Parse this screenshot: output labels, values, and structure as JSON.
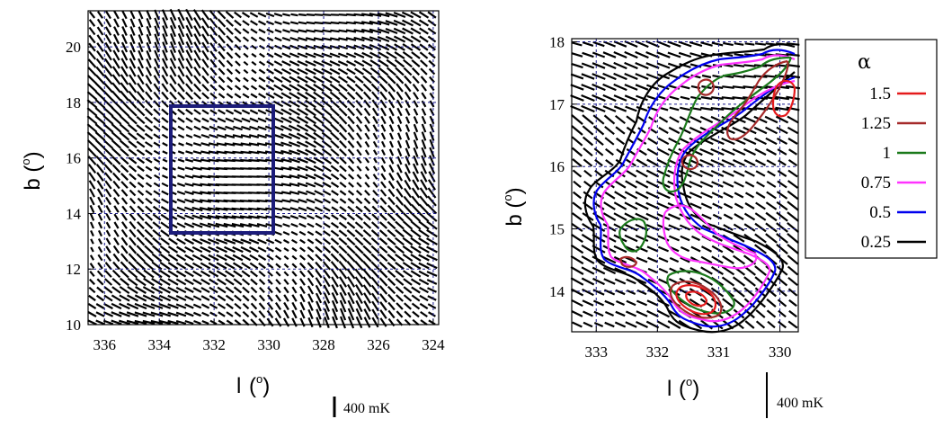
{
  "colors": {
    "vector": "#000000",
    "grid": "#1a1a8c",
    "box": "#1c1c7a",
    "alpha_1.5": "#e41a1c",
    "alpha_1.25": "#a52a2a",
    "alpha_1": "#1b7a1b",
    "alpha_0.75": "#ff33ff",
    "alpha_0.5": "#0000ee",
    "alpha_0.25": "#000000"
  },
  "chart_data": [
    {
      "type": "vector_map",
      "xlabel": "l",
      "xlabel_unit": "o",
      "ylabel": "b",
      "ylabel_unit": "o",
      "xlim": [
        336.6,
        323.8
      ],
      "ylim": [
        10,
        21.3
      ],
      "x_ticks": [
        "336",
        "334",
        "332",
        "330",
        "328",
        "326",
        "324"
      ],
      "y_ticks": [
        "10",
        "12",
        "14",
        "16",
        "18",
        "20"
      ],
      "grid": true,
      "highlight_box": {
        "l": [
          333.4,
          329.7
        ],
        "b": [
          13.3,
          18.0
        ]
      },
      "scale_bar": "400 mK"
    },
    {
      "type": "vector_map_with_contours",
      "xlabel": "l",
      "xlabel_unit": "o",
      "ylabel": "b",
      "ylabel_unit": "o",
      "xlim": [
        333.4,
        329.7
      ],
      "ylim": [
        13.35,
        18.05
      ],
      "x_ticks": [
        "333",
        "332",
        "331",
        "330"
      ],
      "y_ticks": [
        "14",
        "15",
        "16",
        "17",
        "18"
      ],
      "grid": true,
      "scale_bar": "400 mK",
      "legend": {
        "title": "α",
        "position": "right",
        "entries": [
          "1.5",
          "1.25",
          "1",
          "0.75",
          "0.5",
          "0.25"
        ]
      },
      "contour_levels": [
        0.25,
        0.5,
        0.75,
        1,
        1.25,
        1.5
      ]
    }
  ]
}
